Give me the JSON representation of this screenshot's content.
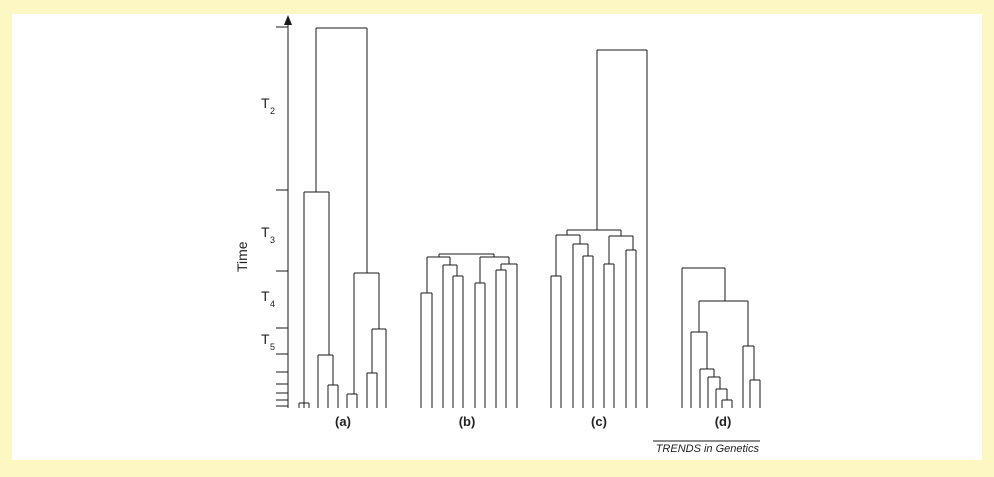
{
  "figure": {
    "axis_label": "Time",
    "period_labels": [
      {
        "letter": "T",
        "sub": "2"
      },
      {
        "letter": "T",
        "sub": "3"
      },
      {
        "letter": "T",
        "sub": "4"
      },
      {
        "letter": "T",
        "sub": "5"
      }
    ],
    "panel_labels": [
      "(a)",
      "(b)",
      "(c)",
      "(d)"
    ],
    "credit": "TRENDS in Genetics"
  },
  "colors": {
    "background": "#fdf7c3",
    "panel": "#ffffff",
    "ink": "#1a1a1a"
  }
}
